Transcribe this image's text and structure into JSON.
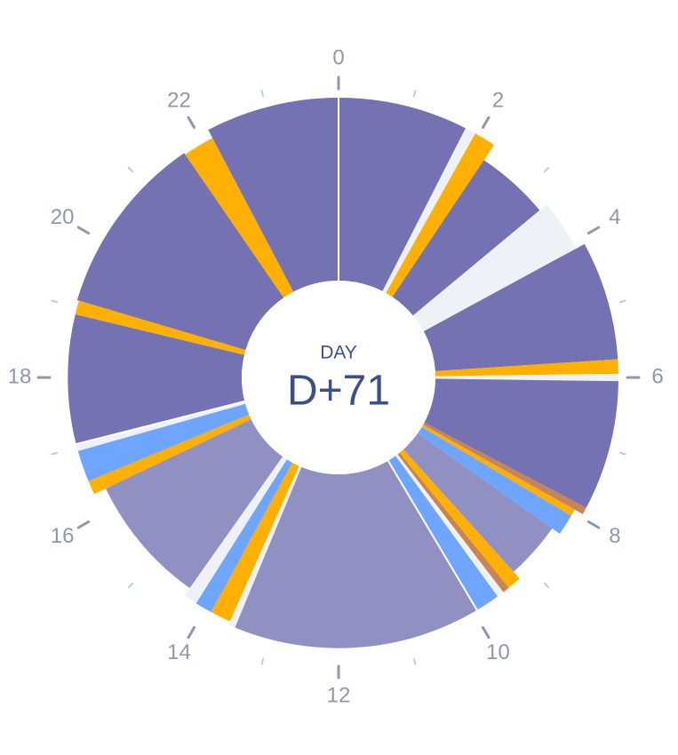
{
  "center": {
    "label": "DAY",
    "value": "D+71"
  },
  "chart_data": {
    "type": "pie",
    "variant": "24-hour donut clock",
    "hour_range": [
      0,
      24
    ],
    "major_ticks": [
      "0",
      "2",
      "4",
      "6",
      "8",
      "10",
      "12",
      "14",
      "16",
      "18",
      "20",
      "22"
    ],
    "minor_ticks": [
      1,
      3,
      5,
      7,
      9,
      11,
      13,
      15,
      17,
      19,
      21,
      23
    ],
    "colors": {
      "dark_purple": "#7472b2",
      "light_purple": "#9090c2",
      "orange": "#ffb000",
      "blue": "#6ea6ff",
      "brown": "#c78557",
      "pale": "#eef2f6",
      "tick": "#8f98aa",
      "center_text": "#3d4f8a"
    },
    "segments": [
      {
        "start": 0.0,
        "end": 1.8,
        "kind": "dark_purple",
        "depth": 1.0
      },
      {
        "start": 1.8,
        "end": 1.95,
        "kind": "pale",
        "depth": 1.0
      },
      {
        "start": 1.95,
        "end": 2.25,
        "kind": "orange",
        "depth": 1.0
      },
      {
        "start": 2.25,
        "end": 3.35,
        "kind": "dark_purple",
        "depth": 0.9
      },
      {
        "start": 3.35,
        "end": 4.1,
        "kind": "pale",
        "depth": 0.95
      },
      {
        "start": 4.1,
        "end": 5.75,
        "kind": "dark_purple",
        "depth": 1.0
      },
      {
        "start": 5.75,
        "end": 5.95,
        "kind": "orange",
        "depth": 1.0
      },
      {
        "start": 5.95,
        "end": 6.05,
        "kind": "pale",
        "depth": 1.0
      },
      {
        "start": 6.05,
        "end": 7.85,
        "kind": "dark_purple",
        "depth": 1.0
      },
      {
        "start": 7.85,
        "end": 7.95,
        "kind": "brown",
        "depth": 1.0
      },
      {
        "start": 7.95,
        "end": 8.05,
        "kind": "orange",
        "depth": 0.95
      },
      {
        "start": 8.05,
        "end": 8.35,
        "kind": "blue",
        "depth": 0.95
      },
      {
        "start": 8.35,
        "end": 9.2,
        "kind": "light_purple",
        "depth": 0.9
      },
      {
        "start": 9.2,
        "end": 9.4,
        "kind": "orange",
        "depth": 0.95
      },
      {
        "start": 9.4,
        "end": 9.5,
        "kind": "brown",
        "depth": 0.95
      },
      {
        "start": 9.5,
        "end": 9.6,
        "kind": "pale",
        "depth": 0.95
      },
      {
        "start": 9.6,
        "end": 9.95,
        "kind": "blue",
        "depth": 0.95
      },
      {
        "start": 9.95,
        "end": 13.5,
        "kind": "light_purple",
        "depth": 0.95
      },
      {
        "start": 13.5,
        "end": 13.6,
        "kind": "pale",
        "depth": 0.95
      },
      {
        "start": 13.6,
        "end": 13.9,
        "kind": "orange",
        "depth": 0.93
      },
      {
        "start": 13.9,
        "end": 14.15,
        "kind": "blue",
        "depth": 0.93
      },
      {
        "start": 14.15,
        "end": 14.35,
        "kind": "pale",
        "depth": 0.93
      },
      {
        "start": 14.35,
        "end": 16.3,
        "kind": "light_purple",
        "depth": 0.88
      },
      {
        "start": 16.3,
        "end": 16.5,
        "kind": "orange",
        "depth": 0.95
      },
      {
        "start": 16.5,
        "end": 16.95,
        "kind": "blue",
        "depth": 0.95
      },
      {
        "start": 16.95,
        "end": 17.05,
        "kind": "pale",
        "depth": 0.95
      },
      {
        "start": 17.05,
        "end": 18.9,
        "kind": "dark_purple",
        "depth": 0.95
      },
      {
        "start": 18.9,
        "end": 19.1,
        "kind": "orange",
        "depth": 0.95
      },
      {
        "start": 19.1,
        "end": 21.7,
        "kind": "dark_purple",
        "depth": 0.96
      },
      {
        "start": 21.7,
        "end": 22.15,
        "kind": "orange",
        "depth": 0.95
      },
      {
        "start": 22.15,
        "end": 24.0,
        "kind": "dark_purple",
        "depth": 1.0
      }
    ]
  }
}
